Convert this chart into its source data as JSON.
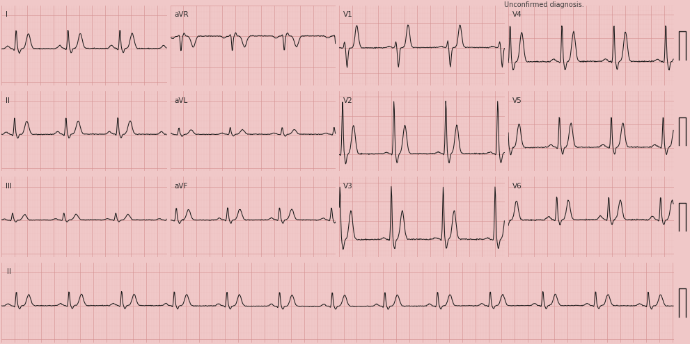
{
  "background_color": "#f0c8c8",
  "grid_major_color": "#d49090",
  "grid_minor_color": "#e8b8b8",
  "line_color": "#1a1a1a",
  "title_text": "Unconfirmed diagnosis.",
  "hr": 75,
  "dt": 0.008
}
